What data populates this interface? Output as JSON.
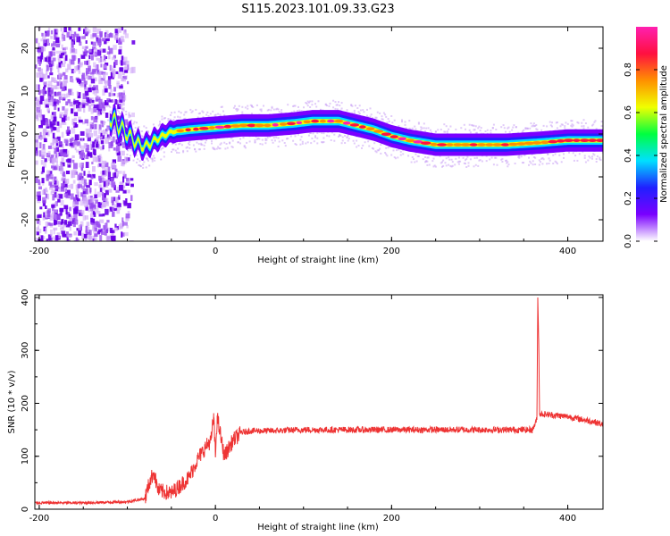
{
  "title": "S115.2023.101.09.33.G23",
  "chart_data": [
    {
      "type": "heatmap",
      "xlabel": "Height of straight line (km)",
      "ylabel": "Frequency (Hz)",
      "xlim": [
        -205,
        440
      ],
      "ylim": [
        -25,
        25
      ],
      "x_ticks": [
        "-200",
        "0",
        "200",
        "400"
      ],
      "y_ticks": [
        "-20",
        "-10",
        "0",
        "10",
        "20"
      ],
      "colorbar": {
        "label": "Normalized spectral amplitude",
        "range": [
          0,
          1
        ],
        "ticks": [
          "0.0",
          "0.2",
          "0.4",
          "0.6",
          "0.8"
        ],
        "colors": [
          "#ffffff",
          "#7a00ff",
          "#2020ff",
          "#00e0ff",
          "#00ff40",
          "#f0ff00",
          "#ff9000",
          "#ff1040",
          "#ff20b0"
        ]
      },
      "ridge": {
        "x": [
          -120,
          -105,
          -90,
          -80,
          -65,
          -50,
          -30,
          0,
          30,
          60,
          90,
          110,
          140,
          160,
          180,
          200,
          220,
          250,
          290,
          330,
          370,
          400,
          440
        ],
        "y": [
          4,
          1,
          -2,
          -3,
          -1,
          0.5,
          1,
          1.5,
          2,
          2,
          2.5,
          3,
          3,
          2,
          1,
          -0.5,
          -1.5,
          -2.5,
          -2.5,
          -2.5,
          -2,
          -1.5,
          -1.5
        ]
      },
      "grid": false
    },
    {
      "type": "line",
      "xlabel": "Height of straight line (km)",
      "ylabel": "SNR (10 * v/v)",
      "xlim": [
        -205,
        440
      ],
      "ylim": [
        0,
        405
      ],
      "x_ticks": [
        "-200",
        "0",
        "200",
        "400"
      ],
      "y_ticks": [
        "0",
        "100",
        "200",
        "300",
        "400"
      ],
      "series": [
        {
          "color": "#ee3333",
          "x": [
            -205,
            -150,
            -100,
            -80,
            -75,
            -70,
            -65,
            -50,
            -30,
            -20,
            -10,
            -5,
            -2,
            0,
            2,
            10,
            20,
            30,
            40,
            60,
            100,
            200,
            300,
            360,
            365,
            366,
            367,
            368,
            370,
            400,
            430,
            440
          ],
          "y": [
            12,
            12,
            14,
            20,
            50,
            70,
            35,
            30,
            60,
            95,
            120,
            130,
            175,
            100,
            175,
            100,
            130,
            145,
            148,
            148,
            150,
            150,
            150,
            150,
            170,
            400,
            320,
            180,
            180,
            175,
            165,
            160
          ]
        }
      ],
      "grid": false
    }
  ]
}
